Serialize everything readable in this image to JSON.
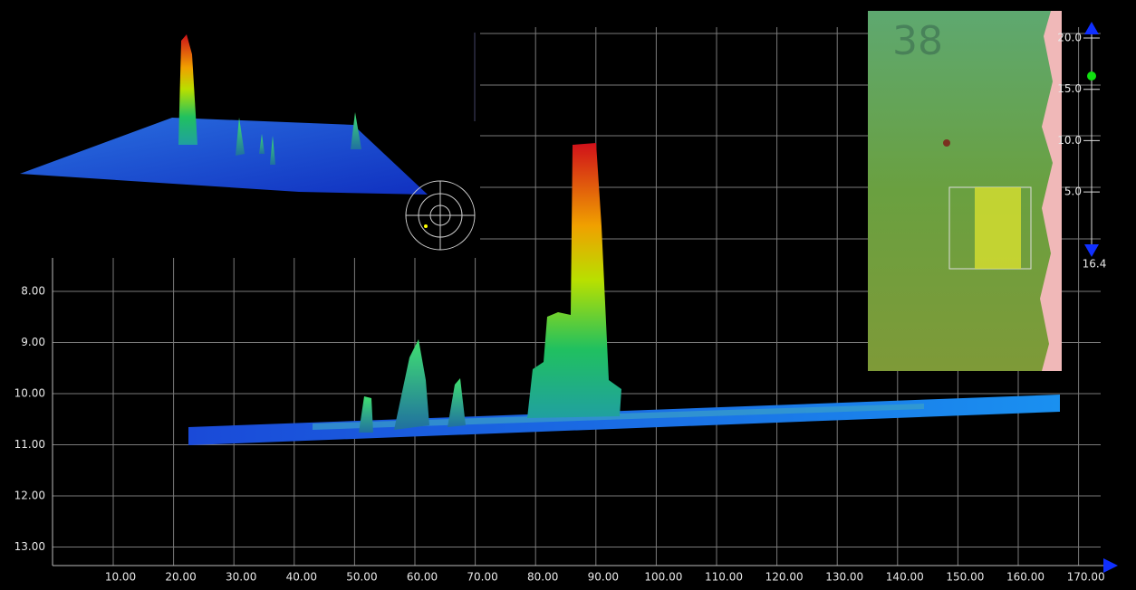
{
  "main_view": {
    "y_labels": [
      "8.00",
      "9.00",
      "10.00",
      "11.00",
      "12.00",
      "13.00"
    ],
    "x_labels": [
      "10.00",
      "20.00",
      "30.00",
      "40.00",
      "50.00",
      "60.00",
      "70.00",
      "80.00",
      "90.00",
      "100.00",
      "110.00",
      "120.00",
      "130.00",
      "140.00",
      "150.00",
      "160.00",
      "170.00"
    ]
  },
  "depth_slider": {
    "labels": [
      "20.0",
      "15.0",
      "10.0",
      "5.0"
    ],
    "value": "16.4"
  },
  "map_inset": {
    "tile_label": "38"
  }
}
